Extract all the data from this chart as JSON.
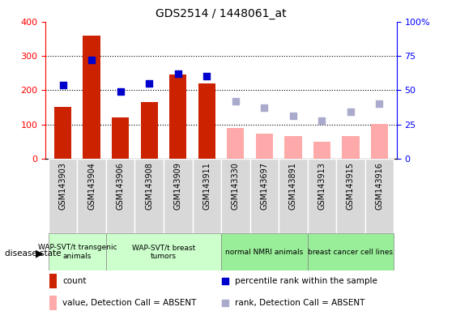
{
  "title": "GDS2514 / 1448061_at",
  "samples": [
    "GSM143903",
    "GSM143904",
    "GSM143906",
    "GSM143908",
    "GSM143909",
    "GSM143911",
    "GSM143330",
    "GSM143697",
    "GSM143891",
    "GSM143913",
    "GSM143915",
    "GSM143916"
  ],
  "count_values": [
    152,
    360,
    120,
    165,
    247,
    220,
    null,
    null,
    null,
    null,
    null,
    null
  ],
  "absent_value": [
    null,
    null,
    null,
    null,
    null,
    null,
    90,
    73,
    65,
    50,
    65,
    102
  ],
  "rank_present": [
    54,
    72,
    49,
    55,
    62,
    60,
    null,
    null,
    null,
    null,
    null,
    null
  ],
  "rank_absent": [
    null,
    null,
    null,
    null,
    null,
    null,
    42,
    37,
    31,
    28,
    34,
    40
  ],
  "group_defs": [
    {
      "start": 0,
      "end": 2,
      "label": "WAP-SVT/t transgenic\nanimals",
      "color": "#ccffcc"
    },
    {
      "start": 2,
      "end": 6,
      "label": "WAP-SVT/t breast\ntumors",
      "color": "#ccffcc"
    },
    {
      "start": 6,
      "end": 9,
      "label": "normal NMRI animals",
      "color": "#99ee99"
    },
    {
      "start": 9,
      "end": 12,
      "label": "breast cancer cell lines",
      "color": "#99ee99"
    }
  ],
  "ylim_left": [
    0,
    400
  ],
  "ylim_right": [
    0,
    100
  ],
  "yticks_left": [
    0,
    100,
    200,
    300,
    400
  ],
  "yticks_right": [
    0,
    25,
    50,
    75,
    100
  ],
  "bar_color_present": "#cc2200",
  "bar_color_absent": "#ffaaaa",
  "dot_color_present": "#0000cc",
  "dot_color_absent": "#aaaacc",
  "background_color": "#ffffff",
  "legend_items": [
    {
      "label": "count",
      "color": "#cc2200",
      "type": "bar"
    },
    {
      "label": "percentile rank within the sample",
      "color": "#0000cc",
      "type": "square"
    },
    {
      "label": "value, Detection Call = ABSENT",
      "color": "#ffaaaa",
      "type": "bar"
    },
    {
      "label": "rank, Detection Call = ABSENT",
      "color": "#aaaacc",
      "type": "square"
    }
  ]
}
